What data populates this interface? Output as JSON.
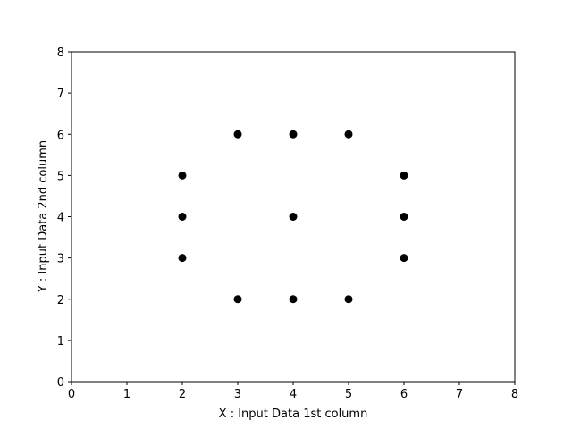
{
  "chart_data": {
    "type": "scatter",
    "title": "",
    "xlabel": "X : Input Data 1st column",
    "ylabel": "Y : Input Data 2nd column",
    "xlim": [
      0,
      8
    ],
    "ylim": [
      0,
      8
    ],
    "xticks": [
      "0",
      "1",
      "2",
      "3",
      "4",
      "5",
      "6",
      "7",
      "8"
    ],
    "yticks": [
      "0",
      "1",
      "2",
      "3",
      "4",
      "5",
      "6",
      "7",
      "8"
    ],
    "grid": false,
    "marker_color": "#000000",
    "series": [
      {
        "points": [
          [
            3,
            6
          ],
          [
            4,
            6
          ],
          [
            5,
            6
          ],
          [
            2,
            5
          ],
          [
            6,
            5
          ],
          [
            2,
            4
          ],
          [
            4,
            4
          ],
          [
            6,
            4
          ],
          [
            2,
            3
          ],
          [
            6,
            3
          ],
          [
            3,
            2
          ],
          [
            4,
            2
          ],
          [
            5,
            2
          ]
        ]
      }
    ]
  }
}
